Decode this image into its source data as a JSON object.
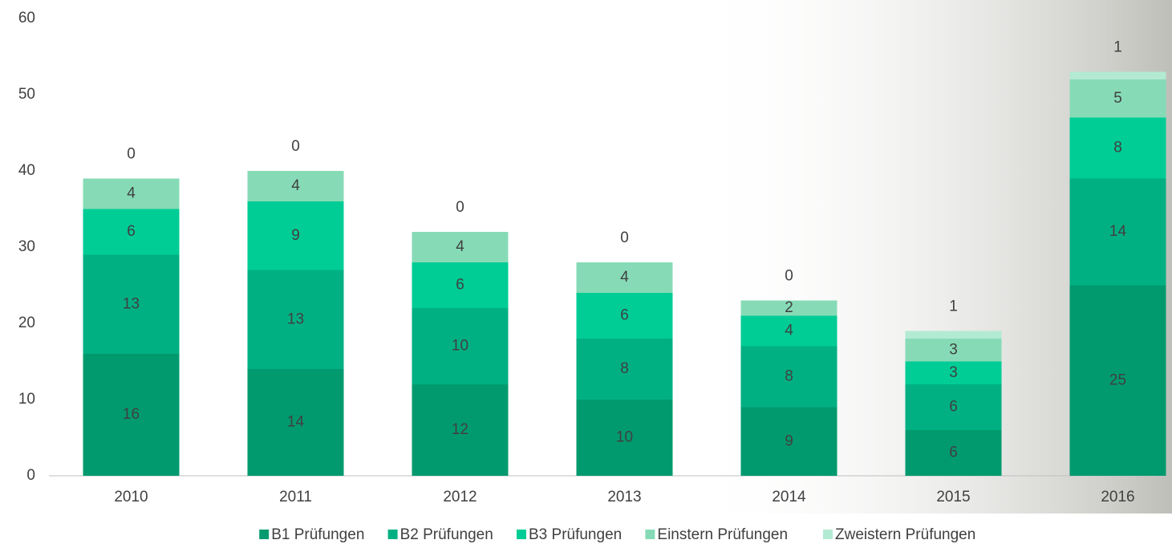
{
  "chart_data": {
    "type": "stacked_bar",
    "categories": [
      "2010",
      "2011",
      "2012",
      "2013",
      "2014",
      "2015",
      "2016"
    ],
    "series": [
      {
        "name": "B1 Prüfungen",
        "color": "#009a6e",
        "values": [
          16,
          14,
          12,
          10,
          9,
          6,
          25
        ]
      },
      {
        "name": "B2 Prüfungen",
        "color": "#00b083",
        "values": [
          13,
          13,
          10,
          8,
          8,
          6,
          14
        ]
      },
      {
        "name": "B3 Prüfungen",
        "color": "#00cc96",
        "values": [
          6,
          9,
          6,
          6,
          4,
          3,
          8
        ]
      },
      {
        "name": "Einstern Prüfungen",
        "color": "#86dbb6",
        "values": [
          4,
          4,
          4,
          4,
          2,
          3,
          5
        ]
      },
      {
        "name": "Zweistern Prüfungen",
        "color": "#b3ead3",
        "values": [
          0,
          0,
          0,
          0,
          0,
          1,
          1
        ]
      }
    ],
    "ylim": [
      0,
      60
    ],
    "yticks": [
      0,
      10,
      20,
      30,
      40,
      50,
      60
    ],
    "legend": "bottom"
  }
}
